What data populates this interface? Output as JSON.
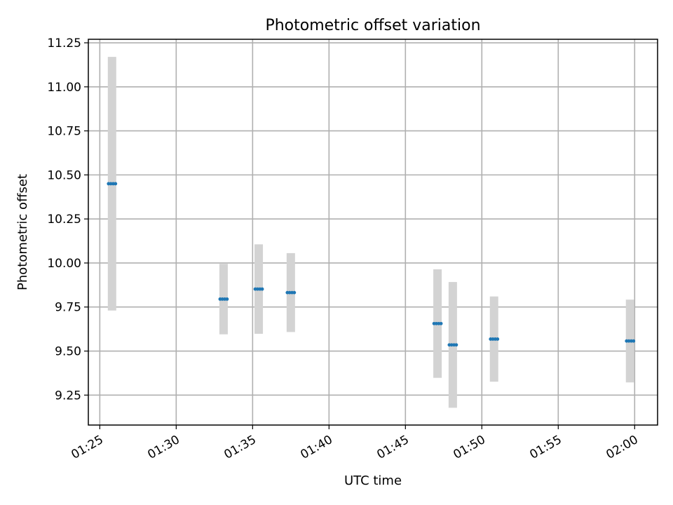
{
  "chart_data": {
    "type": "scatter",
    "title": "Photometric offset variation",
    "xlabel": "UTC time",
    "ylabel": "Photometric offset",
    "xlim": [
      "01:24:15",
      "02:01:30"
    ],
    "ylim": [
      9.08,
      11.27
    ],
    "grid": true,
    "x_ticks": [
      "01:25",
      "01:30",
      "01:35",
      "01:40",
      "01:45",
      "01:50",
      "01:55",
      "02:00"
    ],
    "y_ticks": [
      "9.25",
      "9.50",
      "9.75",
      "10.00",
      "10.25",
      "10.50",
      "10.75",
      "11.00",
      "11.25"
    ],
    "marker_color": "#1f77b4",
    "errorbar_color": "#d3d3d3",
    "series": [
      {
        "points": [
          {
            "time": "01:25:48",
            "value": 10.45,
            "err_low": 9.73,
            "err_high": 11.17
          },
          {
            "time": "01:33:06",
            "value": 9.795,
            "err_low": 9.595,
            "err_high": 9.995
          },
          {
            "time": "01:35:24",
            "value": 9.852,
            "err_low": 9.598,
            "err_high": 10.106
          },
          {
            "time": "01:37:30",
            "value": 9.832,
            "err_low": 9.608,
            "err_high": 10.056
          },
          {
            "time": "01:47:06",
            "value": 9.656,
            "err_low": 9.348,
            "err_high": 9.964
          },
          {
            "time": "01:48:06",
            "value": 9.535,
            "err_low": 9.178,
            "err_high": 9.892
          },
          {
            "time": "01:50:48",
            "value": 9.568,
            "err_low": 9.326,
            "err_high": 9.81
          },
          {
            "time": "01:59:42",
            "value": 9.557,
            "err_low": 9.322,
            "err_high": 9.792
          }
        ]
      }
    ]
  }
}
